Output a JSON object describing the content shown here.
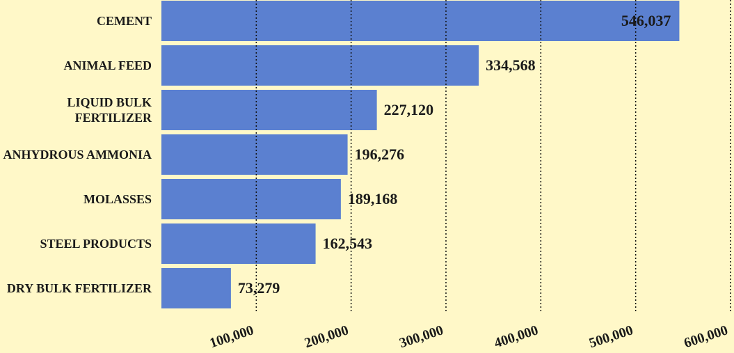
{
  "chart_data": {
    "type": "hbar",
    "categories": [
      "CEMENT",
      "ANIMAL FEED",
      "LIQUID BULK FERTILIZER",
      "ANHYDROUS AMMONIA",
      "MOLASSES",
      "STEEL PRODUCTS",
      "DRY BULK FERTILIZER"
    ],
    "values": [
      546037,
      334568,
      227120,
      196276,
      189168,
      162543,
      73279
    ],
    "value_labels": [
      "546,037",
      "334,568",
      "227,120",
      "196,276",
      "189,168",
      "162,543",
      "73,279"
    ],
    "color": "#5b80d0",
    "xlim": [
      0,
      600000
    ],
    "xticks": [
      {
        "value": 100000,
        "label": "100,000"
      },
      {
        "value": 200000,
        "label": "200,000"
      },
      {
        "value": 300000,
        "label": "300,000"
      },
      {
        "value": 400000,
        "label": "400,000"
      },
      {
        "value": 500000,
        "label": "500,000"
      },
      {
        "value": 600000,
        "label": "600,000"
      }
    ],
    "grid": true
  }
}
